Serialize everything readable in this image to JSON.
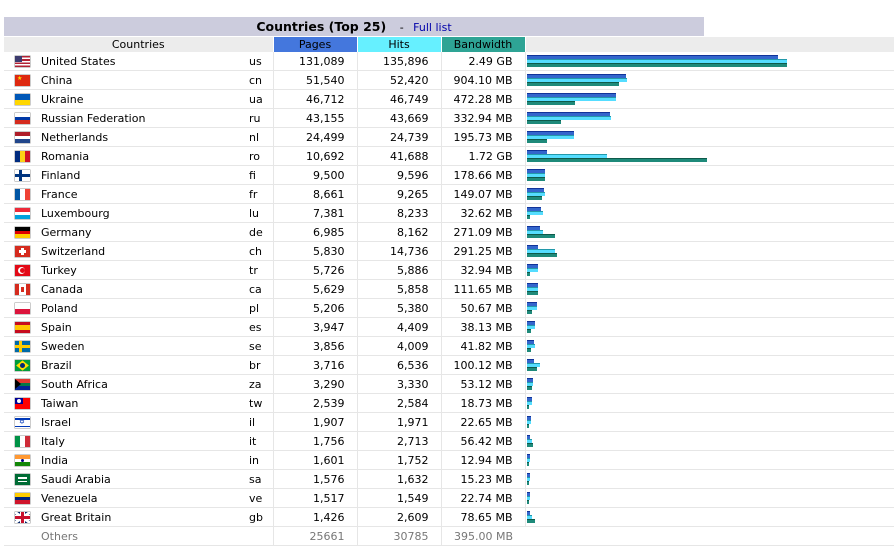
{
  "header": {
    "title": "Countries (Top 25)",
    "separator": "-",
    "full_list_link": "Full list"
  },
  "columns": {
    "countries": "Countries",
    "pages": "Pages",
    "hits": "Hits",
    "bandwidth": "Bandwidth"
  },
  "colors": {
    "pages": "#4477dd",
    "hits": "#66f0ff",
    "bandwidth": "#2ea495"
  },
  "rows": [
    {
      "name": "United States",
      "code": "us",
      "pages": "131,089",
      "hits": "135,896",
      "bandwidth": "2.49 GB",
      "flag": "us-flag-icon",
      "p": 131089,
      "h": 135896,
      "bw_mb": 2549.76
    },
    {
      "name": "China",
      "code": "cn",
      "pages": "51,540",
      "hits": "52,420",
      "bandwidth": "904.10 MB",
      "flag": "cn-flag-icon",
      "p": 51540,
      "h": 52420,
      "bw_mb": 904.1
    },
    {
      "name": "Ukraine",
      "code": "ua",
      "pages": "46,712",
      "hits": "46,749",
      "bandwidth": "472.28 MB",
      "flag": "ua-flag-icon",
      "p": 46712,
      "h": 46749,
      "bw_mb": 472.28
    },
    {
      "name": "Russian Federation",
      "code": "ru",
      "pages": "43,155",
      "hits": "43,669",
      "bandwidth": "332.94 MB",
      "flag": "ru-flag-icon",
      "p": 43155,
      "h": 43669,
      "bw_mb": 332.94
    },
    {
      "name": "Netherlands",
      "code": "nl",
      "pages": "24,499",
      "hits": "24,739",
      "bandwidth": "195.73 MB",
      "flag": "nl-flag-icon",
      "p": 24499,
      "h": 24739,
      "bw_mb": 195.73
    },
    {
      "name": "Romania",
      "code": "ro",
      "pages": "10,692",
      "hits": "41,688",
      "bandwidth": "1.72 GB",
      "flag": "ro-flag-icon",
      "p": 10692,
      "h": 41688,
      "bw_mb": 1761.28
    },
    {
      "name": "Finland",
      "code": "fi",
      "pages": "9,500",
      "hits": "9,596",
      "bandwidth": "178.66 MB",
      "flag": "fi-flag-icon",
      "p": 9500,
      "h": 9596,
      "bw_mb": 178.66
    },
    {
      "name": "France",
      "code": "fr",
      "pages": "8,661",
      "hits": "9,265",
      "bandwidth": "149.07 MB",
      "flag": "fr-flag-icon",
      "p": 8661,
      "h": 9265,
      "bw_mb": 149.07
    },
    {
      "name": "Luxembourg",
      "code": "lu",
      "pages": "7,381",
      "hits": "8,233",
      "bandwidth": "32.62 MB",
      "flag": "lu-flag-icon",
      "p": 7381,
      "h": 8233,
      "bw_mb": 32.62
    },
    {
      "name": "Germany",
      "code": "de",
      "pages": "6,985",
      "hits": "8,162",
      "bandwidth": "271.09 MB",
      "flag": "de-flag-icon",
      "p": 6985,
      "h": 8162,
      "bw_mb": 271.09
    },
    {
      "name": "Switzerland",
      "code": "ch",
      "pages": "5,830",
      "hits": "14,736",
      "bandwidth": "291.25 MB",
      "flag": "ch-flag-icon",
      "p": 5830,
      "h": 14736,
      "bw_mb": 291.25
    },
    {
      "name": "Turkey",
      "code": "tr",
      "pages": "5,726",
      "hits": "5,886",
      "bandwidth": "32.94 MB",
      "flag": "tr-flag-icon",
      "p": 5726,
      "h": 5886,
      "bw_mb": 32.94
    },
    {
      "name": "Canada",
      "code": "ca",
      "pages": "5,629",
      "hits": "5,858",
      "bandwidth": "111.65 MB",
      "flag": "ca-flag-icon",
      "p": 5629,
      "h": 5858,
      "bw_mb": 111.65
    },
    {
      "name": "Poland",
      "code": "pl",
      "pages": "5,206",
      "hits": "5,380",
      "bandwidth": "50.67 MB",
      "flag": "pl-flag-icon",
      "p": 5206,
      "h": 5380,
      "bw_mb": 50.67
    },
    {
      "name": "Spain",
      "code": "es",
      "pages": "3,947",
      "hits": "4,409",
      "bandwidth": "38.13 MB",
      "flag": "es-flag-icon",
      "p": 3947,
      "h": 4409,
      "bw_mb": 38.13
    },
    {
      "name": "Sweden",
      "code": "se",
      "pages": "3,856",
      "hits": "4,009",
      "bandwidth": "41.82 MB",
      "flag": "se-flag-icon",
      "p": 3856,
      "h": 4009,
      "bw_mb": 41.82
    },
    {
      "name": "Brazil",
      "code": "br",
      "pages": "3,716",
      "hits": "6,536",
      "bandwidth": "100.12 MB",
      "flag": "br-flag-icon",
      "p": 3716,
      "h": 6536,
      "bw_mb": 100.12
    },
    {
      "name": "South Africa",
      "code": "za",
      "pages": "3,290",
      "hits": "3,330",
      "bandwidth": "53.12 MB",
      "flag": "za-flag-icon",
      "p": 3290,
      "h": 3330,
      "bw_mb": 53.12
    },
    {
      "name": "Taiwan",
      "code": "tw",
      "pages": "2,539",
      "hits": "2,584",
      "bandwidth": "18.73 MB",
      "flag": "tw-flag-icon",
      "p": 2539,
      "h": 2584,
      "bw_mb": 18.73
    },
    {
      "name": "Israel",
      "code": "il",
      "pages": "1,907",
      "hits": "1,971",
      "bandwidth": "22.65 MB",
      "flag": "il-flag-icon",
      "p": 1907,
      "h": 1971,
      "bw_mb": 22.65
    },
    {
      "name": "Italy",
      "code": "it",
      "pages": "1,756",
      "hits": "2,713",
      "bandwidth": "56.42 MB",
      "flag": "it-flag-icon",
      "p": 1756,
      "h": 2713,
      "bw_mb": 56.42
    },
    {
      "name": "India",
      "code": "in",
      "pages": "1,601",
      "hits": "1,752",
      "bandwidth": "12.94 MB",
      "flag": "in-flag-icon",
      "p": 1601,
      "h": 1752,
      "bw_mb": 12.94
    },
    {
      "name": "Saudi Arabia",
      "code": "sa",
      "pages": "1,576",
      "hits": "1,632",
      "bandwidth": "15.23 MB",
      "flag": "sa-flag-icon",
      "p": 1576,
      "h": 1632,
      "bw_mb": 15.23
    },
    {
      "name": "Venezuela",
      "code": "ve",
      "pages": "1,517",
      "hits": "1,549",
      "bandwidth": "22.74 MB",
      "flag": "ve-flag-icon",
      "p": 1517,
      "h": 1549,
      "bw_mb": 22.74
    },
    {
      "name": "Great Britain",
      "code": "gb",
      "pages": "1,426",
      "hits": "2,609",
      "bandwidth": "78.65 MB",
      "flag": "gb-flag-icon",
      "p": 1426,
      "h": 2609,
      "bw_mb": 78.65
    }
  ],
  "others": {
    "name": "Others",
    "pages": "25661",
    "hits": "30785",
    "bandwidth": "395.00 MB"
  }
}
